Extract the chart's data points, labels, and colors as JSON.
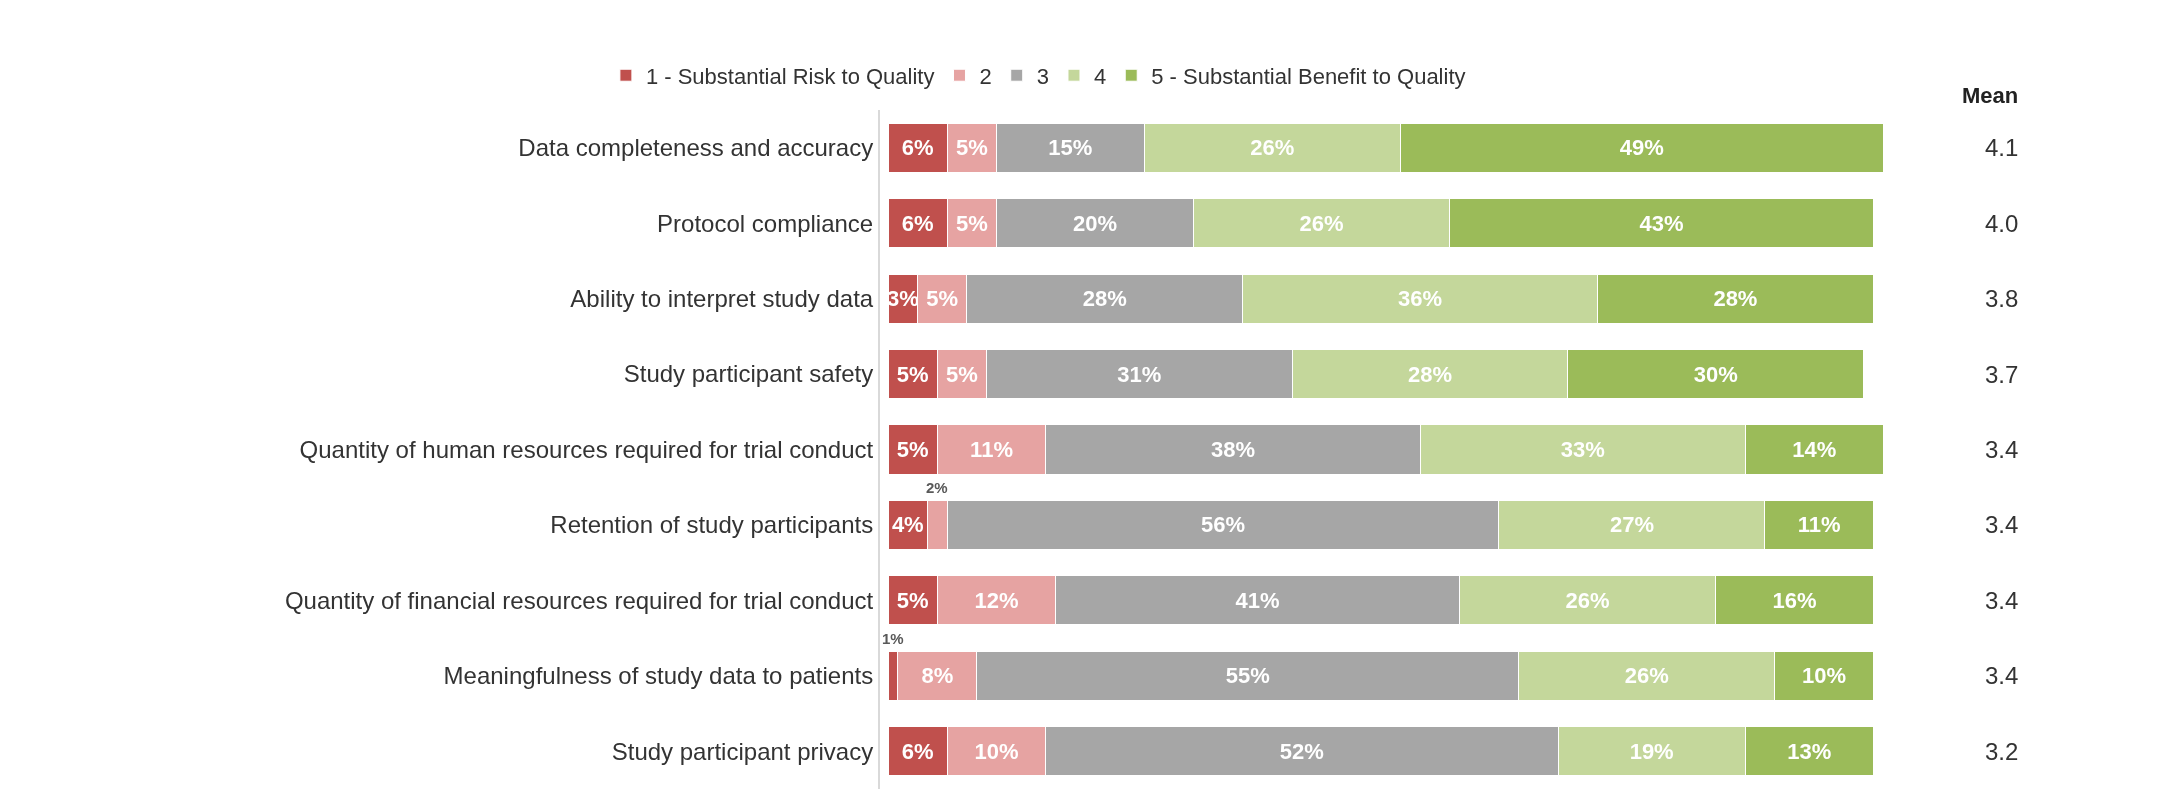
{
  "chart_data": {
    "type": "bar",
    "orientation": "horizontal",
    "stacked": true,
    "legend": "top",
    "tick_labels": "y",
    "categories": [
      "Data completeness and accuracy",
      "Protocol compliance",
      "Ability to interpret study data",
      "Study participant safety",
      "Quantity of human resources required for trial conduct",
      "Retention of study participants",
      "Quantity of financial resources required for trial conduct",
      "Meaningfulness of study data to patients",
      "Study participant privacy"
    ],
    "series": [
      {
        "name": "1 - Substantial Risk to Quality",
        "color": "#c0504d",
        "values": [
          6,
          6,
          3,
          5,
          5,
          4,
          5,
          1,
          6
        ],
        "value_labels": [
          "6%",
          "6%",
          "3%",
          "5%",
          "5%",
          "4%",
          "5%",
          "1%",
          "6%"
        ]
      },
      {
        "name": "2",
        "color": "#e6a3a2",
        "values": [
          5,
          5,
          5,
          5,
          11,
          2,
          12,
          8,
          10
        ],
        "value_labels": [
          "5%",
          "5%",
          "5%",
          "5%",
          "11%",
          "2%",
          "12%",
          "8%",
          "10%"
        ]
      },
      {
        "name": "3",
        "color": "#a6a6a6",
        "values": [
          15,
          20,
          28,
          31,
          38,
          56,
          41,
          55,
          52
        ],
        "value_labels": [
          "15%",
          "20%",
          "28%",
          "31%",
          "38%",
          "56%",
          "41%",
          "55%",
          "52%"
        ]
      },
      {
        "name": "4",
        "color": "#c4d79b",
        "values": [
          26,
          26,
          36,
          28,
          33,
          27,
          26,
          26,
          19
        ],
        "value_labels": [
          "26%",
          "26%",
          "36%",
          "28%",
          "33%",
          "27%",
          "26%",
          "26%",
          "19%"
        ]
      },
      {
        "name": "5 - Substantial Benefit to Quality",
        "color": "#9bbb59",
        "values": [
          49,
          43,
          28,
          30,
          14,
          11,
          16,
          10,
          13
        ],
        "value_labels": [
          "49%",
          "43%",
          "28%",
          "30%",
          "14%",
          "11%",
          "16%",
          "10%",
          "13%"
        ]
      }
    ],
    "annotations": [
      "Mean",
      "4.1",
      "4.0",
      "3.8",
      "3.7",
      "3.4",
      "3.4",
      "3.4",
      "3.4",
      "3.2"
    ]
  }
}
